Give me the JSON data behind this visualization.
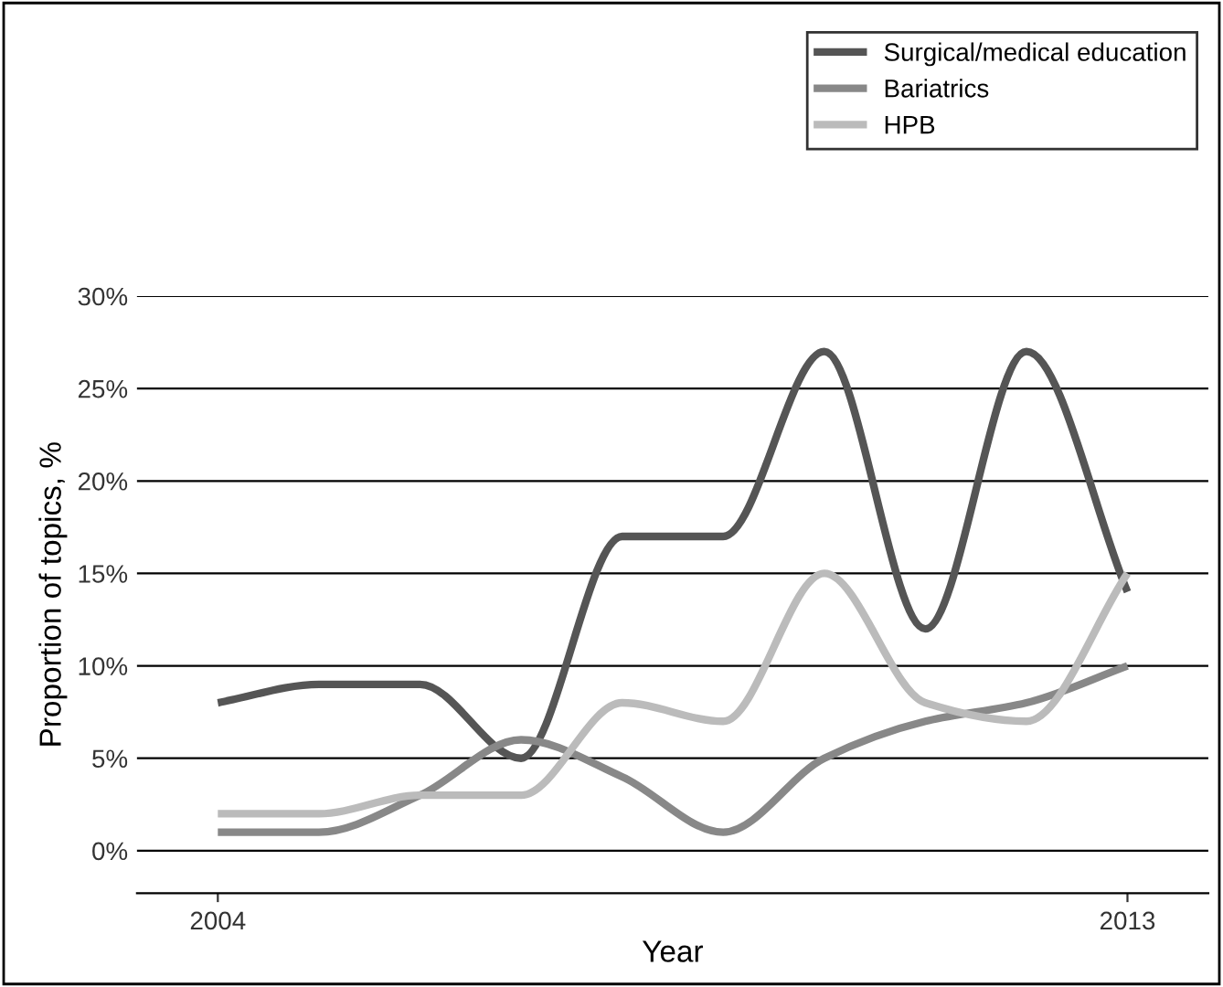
{
  "chart_data": {
    "type": "line",
    "xlabel": "Year",
    "ylabel": "Proportion of topics, %",
    "x": [
      2004,
      2005,
      2006,
      2007,
      2008,
      2009,
      2010,
      2011,
      2012,
      2013
    ],
    "series": [
      {
        "name": "Surgical/medical education",
        "color": "#555555",
        "values": [
          8,
          9,
          9,
          5,
          17,
          17,
          27,
          12,
          27,
          14
        ]
      },
      {
        "name": "Bariatrics",
        "color": "#888888",
        "values": [
          1,
          1,
          3,
          6,
          4,
          1,
          5,
          7,
          8,
          10
        ]
      },
      {
        "name": "HPB",
        "color": "#bbbbbb",
        "values": [
          2,
          2,
          3,
          3,
          8,
          7,
          15,
          8,
          7,
          15
        ]
      }
    ],
    "xlim": [
      2003.2,
      2013.8
    ],
    "xticks": [
      2004,
      2013
    ],
    "ylim": [
      -2.3,
      30
    ],
    "yticks": [
      {
        "value": 0,
        "label": "0%"
      },
      {
        "value": 5,
        "label": "5%"
      },
      {
        "value": 10,
        "label": "10%"
      },
      {
        "value": 15,
        "label": "15%"
      },
      {
        "value": 20,
        "label": "20%"
      },
      {
        "value": 25,
        "label": "25%"
      },
      {
        "value": 30,
        "label": "30%"
      }
    ],
    "grid": "y",
    "legend": "top right",
    "marker": "none",
    "line_style": "solid"
  }
}
